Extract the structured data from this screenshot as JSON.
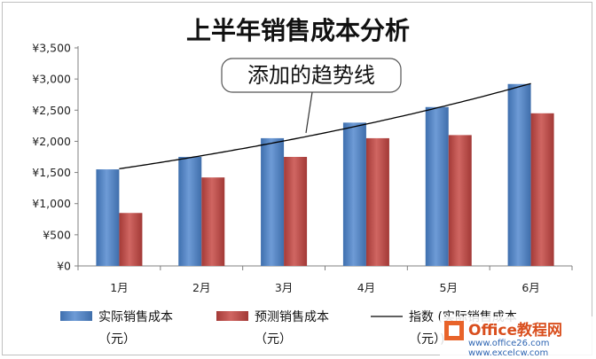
{
  "chart_data": {
    "type": "bar",
    "title": "上半年销售成本分析",
    "categories": [
      "1月",
      "2月",
      "3月",
      "4月",
      "5月",
      "6月"
    ],
    "series": [
      {
        "name": "实际销售成本（元）",
        "values": [
          1550,
          1750,
          2050,
          2300,
          2550,
          2920
        ],
        "color": "#4f81bd"
      },
      {
        "name": "预测销售成本（元）",
        "values": [
          850,
          1420,
          1750,
          2050,
          2100,
          2450
        ],
        "color": "#c0504d"
      }
    ],
    "trendline": {
      "name": "指数 (实际销售成本（元）)",
      "type": "exponential",
      "color": "#000000"
    },
    "y_ticks": [
      "¥0",
      "¥500",
      "¥1,000",
      "¥1,500",
      "¥2,000",
      "¥2,500",
      "¥3,000",
      "¥3,500"
    ],
    "ylim": [
      0,
      3500
    ],
    "gridlines": false,
    "legend_position": "bottom",
    "annotation": "添加的趋势线"
  },
  "watermark": {
    "line1": "Office教程网",
    "line2": "www.office26.com",
    "line3": "www.excelcw.com"
  }
}
